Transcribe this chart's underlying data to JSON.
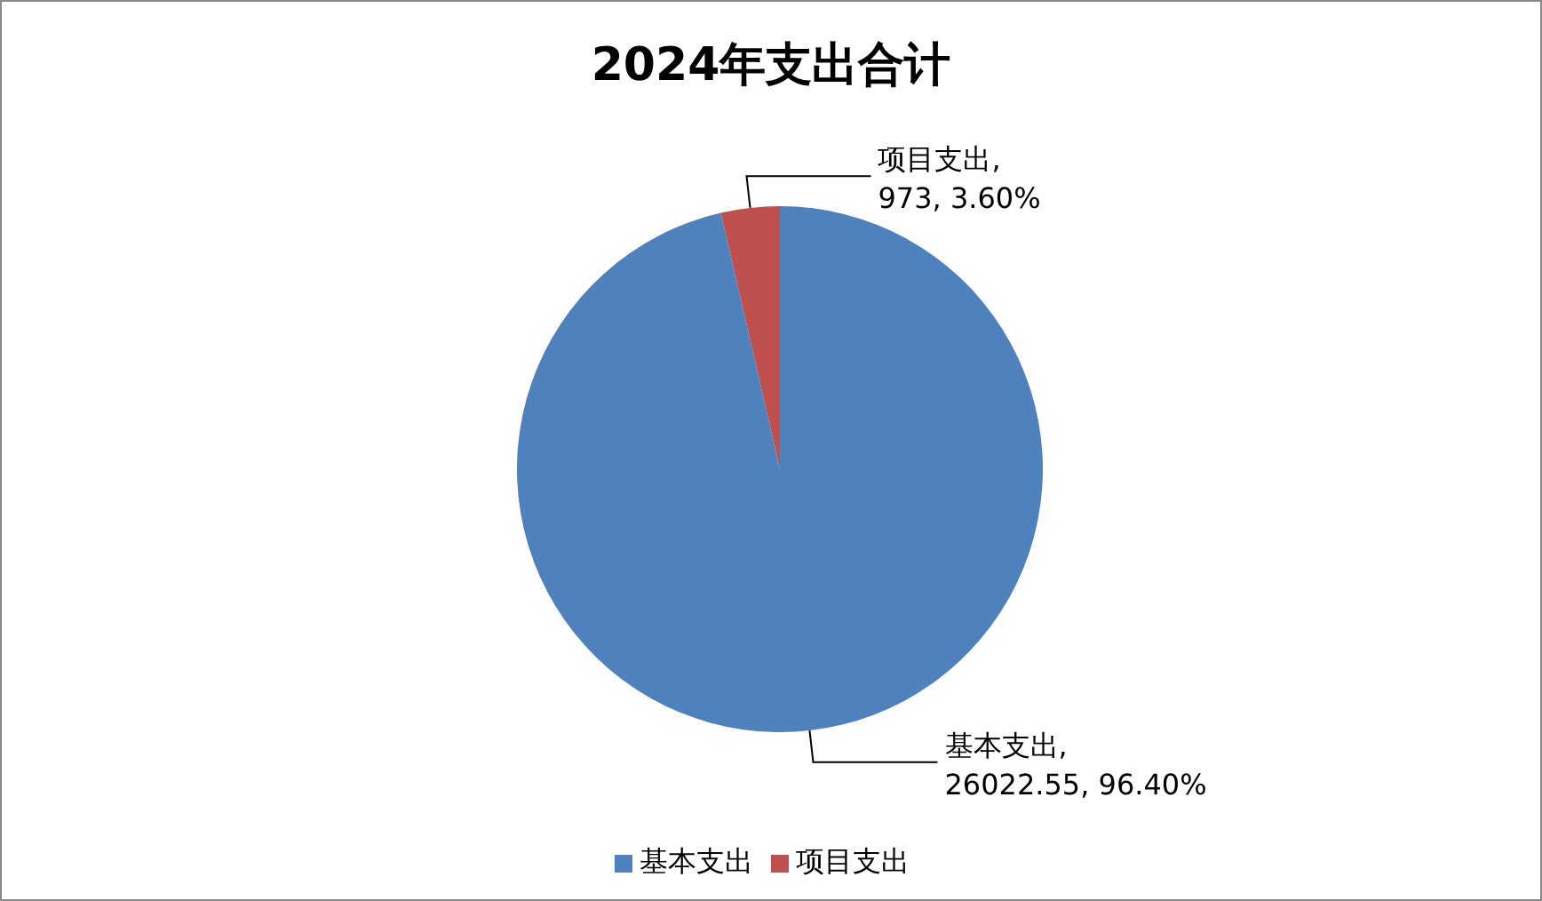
{
  "chart_data": {
    "type": "pie",
    "title": "2024年支出合计",
    "categories": [
      "基本支出",
      "项目支出"
    ],
    "values": [
      26022.55,
      973
    ],
    "colors": [
      "#4f81bd",
      "#c0504d"
    ],
    "value_labels": [
      "基本支出, 26022.55, 96.40%",
      "项目支出, 973, 3.60%"
    ],
    "legend": "bottom"
  }
}
